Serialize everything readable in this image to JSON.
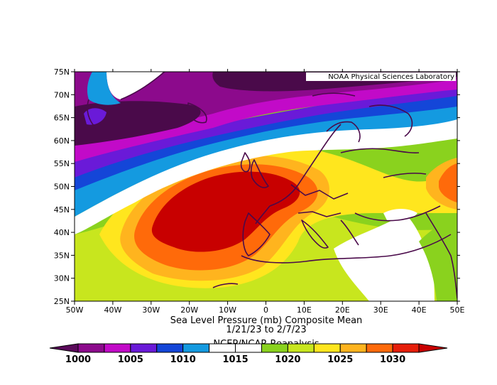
{
  "credit": "NOAA Physical Sciences Laboratory",
  "title": {
    "line1": "Sea Level Pressure (mb) Composite Mean",
    "line2": "1/21/23  to 2/7/23",
    "line3": "NCEP/NCAR Reanalysis"
  },
  "lat_ticks": [
    "75N",
    "70N",
    "65N",
    "60N",
    "55N",
    "50N",
    "45N",
    "40N",
    "35N",
    "30N",
    "25N"
  ],
  "lon_ticks": [
    "50W",
    "40W",
    "30W",
    "20W",
    "10W",
    "0",
    "10E",
    "20E",
    "30E",
    "40E",
    "50E"
  ],
  "colorbar": {
    "labels": [
      "1000",
      "1005",
      "1010",
      "1015",
      "1020",
      "1025",
      "1030"
    ],
    "colors": [
      "#5a0a5a",
      "#8c0a8c",
      "#c20ac8",
      "#6a1ad8",
      "#1446d8",
      "#149ae0",
      "#ffffff",
      "#ffffff",
      "#8ad21e",
      "#c8e61e",
      "#ffe61e",
      "#ffb41e",
      "#ff6a0a",
      "#e61e0a",
      "#c80000"
    ]
  },
  "field_colors": {
    "p998": "#4a0a4a",
    "p1000": "#8c0a8c",
    "p1003": "#c20ac8",
    "p1005": "#6a1ad8",
    "p1008": "#1446d8",
    "p1010": "#149ae0",
    "p1015": "#ffffff",
    "p1018": "#8ad21e",
    "p1020": "#c8e61e",
    "p1023": "#ffe61e",
    "p1025": "#ffb41e",
    "p1028": "#ff6a0a",
    "p1030": "#c80000"
  }
}
